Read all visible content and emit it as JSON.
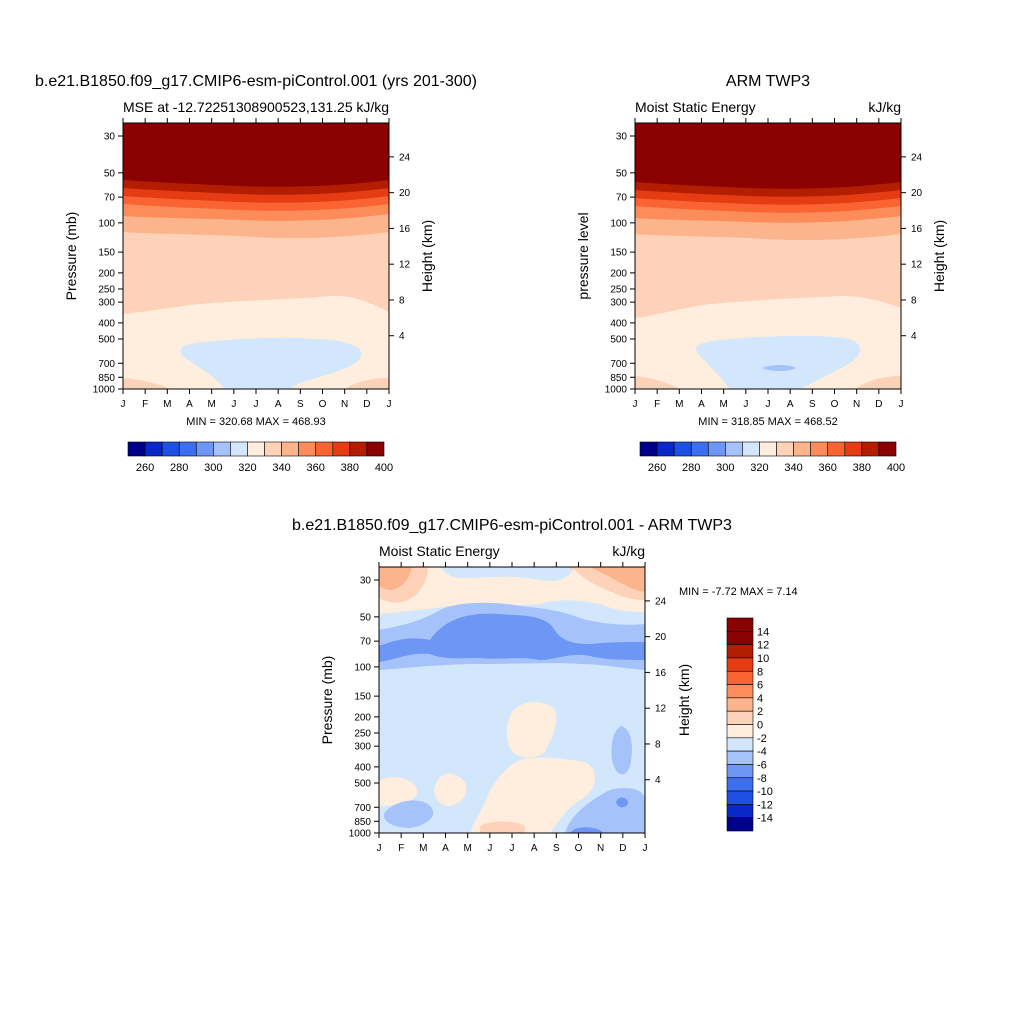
{
  "chart_data": [
    {
      "type": "heatmap",
      "title": "b.e21.B1850.f09_g17.CMIP6-esm-piControl.001 (yrs 201-300)",
      "left_string": "MSE at -12.72251308900523,131.25",
      "right_string": "kJ/kg",
      "xlabel": "",
      "ylabel": "Pressure (mb)",
      "ylabel_right": "Height (km)",
      "x": [
        "J",
        "F",
        "M",
        "A",
        "M",
        "J",
        "J",
        "A",
        "S",
        "O",
        "N",
        "D",
        "J"
      ],
      "y_pressure_ticks": [
        "30",
        "50",
        "70",
        "100",
        "150",
        "200",
        "250",
        "300",
        "400",
        "500",
        "700",
        "850",
        "1000"
      ],
      "y_height_ticks": [
        "24",
        "20",
        "16",
        "12",
        "8",
        "4"
      ],
      "stats": "MIN = 320.68 MAX = 468.93",
      "colorbar": {
        "orientation": "horizontal",
        "labels": [
          "260",
          "280",
          "300",
          "320",
          "340",
          "360",
          "380",
          "400"
        ]
      }
    },
    {
      "type": "heatmap",
      "title": "ARM TWP3",
      "left_string": "Moist Static Energy",
      "right_string": "kJ/kg",
      "ylabel": "pressure level",
      "ylabel_right": "Height (km)",
      "x": [
        "J",
        "F",
        "M",
        "A",
        "M",
        "J",
        "J",
        "A",
        "S",
        "O",
        "N",
        "D",
        "J"
      ],
      "y_pressure_ticks": [
        "30",
        "50",
        "70",
        "100",
        "150",
        "200",
        "250",
        "300",
        "400",
        "500",
        "700",
        "850",
        "1000"
      ],
      "y_height_ticks": [
        "24",
        "20",
        "16",
        "12",
        "8",
        "4"
      ],
      "stats": "MIN = 318.85 MAX = 468.52",
      "colorbar": {
        "orientation": "horizontal",
        "labels": [
          "260",
          "280",
          "300",
          "320",
          "340",
          "360",
          "380",
          "400"
        ]
      }
    },
    {
      "type": "heatmap",
      "title": "b.e21.B1850.f09_g17.CMIP6-esm-piControl.001 - ARM TWP3",
      "left_string": "Moist Static Energy",
      "right_string": "kJ/kg",
      "ylabel": "Pressure (mb)",
      "ylabel_right": "Height (km)",
      "x": [
        "J",
        "F",
        "M",
        "A",
        "M",
        "J",
        "J",
        "A",
        "S",
        "O",
        "N",
        "D",
        "J"
      ],
      "y_pressure_ticks": [
        "30",
        "50",
        "70",
        "100",
        "150",
        "200",
        "250",
        "300",
        "400",
        "500",
        "700",
        "850",
        "1000"
      ],
      "y_height_ticks": [
        "24",
        "20",
        "16",
        "12",
        "8",
        "4"
      ],
      "stats": "MIN =  -7.72 MAX =   7.14",
      "colorbar": {
        "orientation": "vertical",
        "labels": [
          "14",
          "12",
          "10",
          "8",
          "6",
          "4",
          "2",
          "0",
          "-2",
          "-4",
          "-6",
          "-8",
          "-10",
          "-12",
          "-14"
        ]
      }
    }
  ],
  "colors": {
    "mse_scale": [
      "#00008b",
      "#0a28c8",
      "#1e50e6",
      "#3c6ef0",
      "#6e96f5",
      "#a5c3fa",
      "#d2e6fc",
      "#ffeedd",
      "#fdd2b9",
      "#fcb48c",
      "#fc8c5a",
      "#fa6432",
      "#e63c14",
      "#b41e00",
      "#8b0000"
    ],
    "diff_scale": [
      "#00008b",
      "#0a28c8",
      "#1e50e6",
      "#3c6ef0",
      "#6e96f5",
      "#a5c3fa",
      "#d2e6fc",
      "#ffeedd",
      "#fdd2b9",
      "#fcb48c",
      "#fc8c5a",
      "#fa6432",
      "#e63c14",
      "#b41e00",
      "#8b0000"
    ]
  }
}
